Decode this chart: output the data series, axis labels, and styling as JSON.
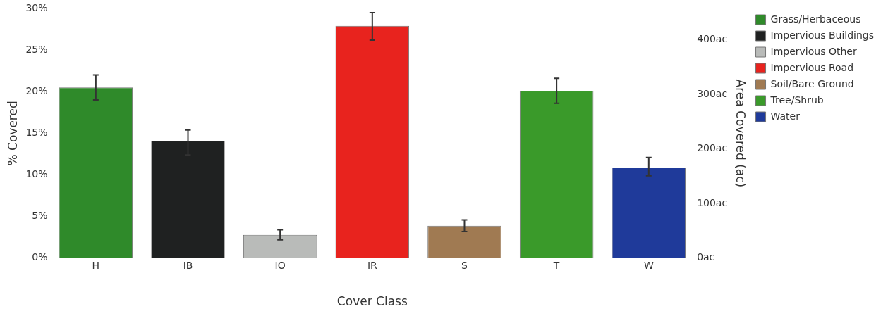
{
  "chart_data": {
    "type": "bar",
    "xlabel": "Cover Class",
    "ylabel": "% Covered",
    "y2label": "Area Covered (ac)",
    "categories": [
      "H",
      "IB",
      "IO",
      "IR",
      "S",
      "T",
      "W"
    ],
    "series": [
      {
        "name": "Grass/Herbaceous",
        "color": "#2f8a2a",
        "values": [
          20.5,
          null,
          null,
          null,
          null,
          null,
          null
        ],
        "errors": [
          [
            19.0,
            22.0
          ],
          null,
          null,
          null,
          null,
          null,
          null
        ]
      },
      {
        "name": "Impervious Buildings",
        "color": "#1f2121",
        "values": [
          null,
          14.1,
          null,
          null,
          null,
          null,
          null
        ],
        "errors": [
          null,
          [
            12.4,
            15.4
          ],
          null,
          null,
          null,
          null,
          null
        ]
      },
      {
        "name": "Impervious Other",
        "color": "#b9bbb9",
        "values": [
          null,
          null,
          2.8,
          null,
          null,
          null,
          null
        ],
        "errors": [
          null,
          null,
          [
            2.2,
            3.4
          ],
          null,
          null,
          null,
          null
        ]
      },
      {
        "name": "Impervious Road",
        "color": "#e8231e",
        "values": [
          null,
          null,
          null,
          27.9,
          null,
          null,
          null
        ],
        "errors": [
          null,
          null,
          null,
          [
            26.2,
            29.5
          ],
          null,
          null,
          null
        ]
      },
      {
        "name": "Soil/Bare Ground",
        "color": "#a07a52",
        "values": [
          null,
          null,
          null,
          null,
          3.9,
          null,
          null
        ],
        "errors": [
          null,
          null,
          null,
          null,
          [
            3.2,
            4.6
          ],
          null,
          null
        ]
      },
      {
        "name": "Tree/Shrub",
        "color": "#3a9a2a",
        "values": [
          null,
          null,
          null,
          null,
          null,
          20.1,
          null
        ],
        "errors": [
          null,
          null,
          null,
          null,
          null,
          [
            18.6,
            21.6
          ],
          null
        ]
      },
      {
        "name": "Water",
        "color": "#1f3a9a",
        "values": [
          null,
          null,
          null,
          null,
          null,
          null,
          10.9
        ],
        "errors": [
          null,
          null,
          null,
          null,
          null,
          null,
          [
            9.9,
            12.1
          ]
        ]
      }
    ],
    "ylim": [
      0,
      30
    ],
    "yticks": [
      {
        "value": 0,
        "label": "0%"
      },
      {
        "value": 5,
        "label": "5%"
      },
      {
        "value": 10,
        "label": "10%"
      },
      {
        "value": 15,
        "label": "15%"
      },
      {
        "value": 20,
        "label": "20%"
      },
      {
        "value": 25,
        "label": "25%"
      },
      {
        "value": 30,
        "label": "30%"
      }
    ],
    "y2lim": [
      0,
      457
    ],
    "y2ticks": [
      {
        "value": 0,
        "label": "0ac"
      },
      {
        "value": 100,
        "label": "100ac"
      },
      {
        "value": 200,
        "label": "200ac"
      },
      {
        "value": 300,
        "label": "300ac"
      },
      {
        "value": 400,
        "label": "400ac"
      }
    ],
    "grid": false,
    "legend": "top right"
  }
}
